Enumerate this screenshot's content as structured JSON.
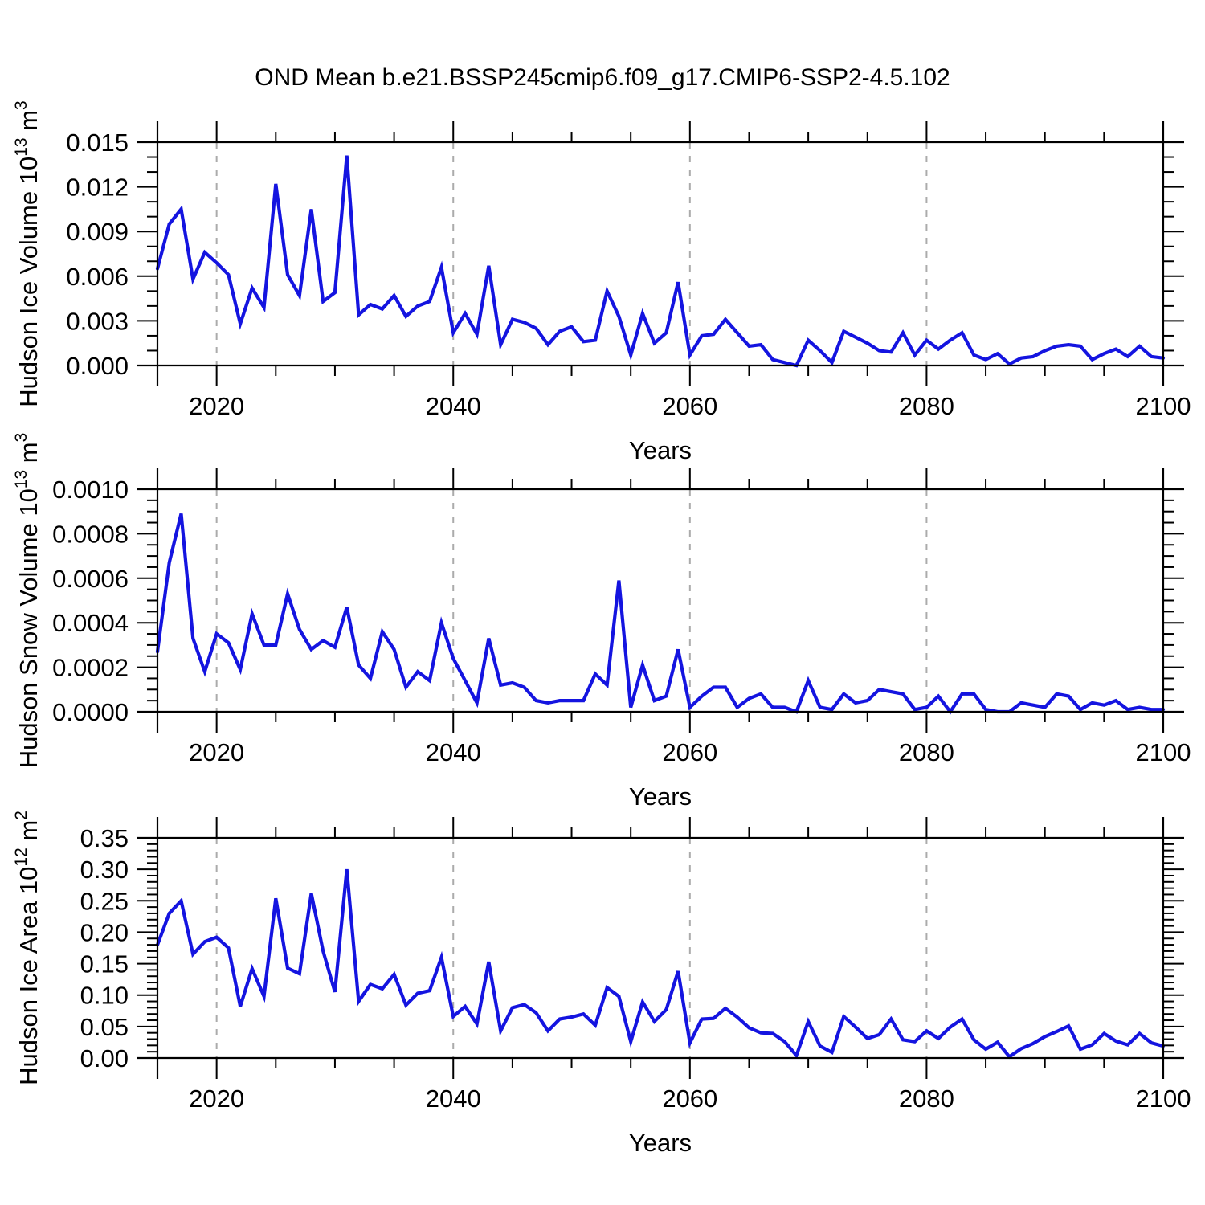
{
  "page": {
    "title": "OND Mean b.e21.BSSP245cmip6.f09_g17.CMIP6-SSP2-4.5.102",
    "background_color": "#ffffff",
    "line_color": "#1414e0",
    "grid_color": "#ababab",
    "axis_color": "#000000"
  },
  "x_axis": {
    "label": "Years",
    "start": 2015,
    "end": 2100,
    "major_tick_years": [
      2020,
      2040,
      2060,
      2080,
      2100
    ],
    "minor_tick_step": 5,
    "grid_years": [
      2020,
      2040,
      2060,
      2080
    ],
    "grid_style": "dashed"
  },
  "chart_data": [
    {
      "id": "hudson-ice-volume",
      "type": "line",
      "ylabel_parts": [
        [
          "Hudson Ice Volume 10",
          0
        ],
        [
          "13",
          1
        ],
        [
          " m",
          0
        ],
        [
          "3",
          1
        ]
      ],
      "ylim": [
        0,
        0.015
      ],
      "y_major_step": 0.003,
      "y_minor_divisions": 3,
      "y_decimals": 3,
      "y_tick_labels": [
        "0.000",
        "0.003",
        "0.006",
        "0.009",
        "0.012",
        "0.015"
      ],
      "x": [
        2015,
        2016,
        2017,
        2018,
        2019,
        2020,
        2021,
        2022,
        2023,
        2024,
        2025,
        2026,
        2027,
        2028,
        2029,
        2030,
        2031,
        2032,
        2033,
        2034,
        2035,
        2036,
        2037,
        2038,
        2039,
        2040,
        2041,
        2042,
        2043,
        2044,
        2045,
        2046,
        2047,
        2048,
        2049,
        2050,
        2051,
        2052,
        2053,
        2054,
        2055,
        2056,
        2057,
        2058,
        2059,
        2060,
        2061,
        2062,
        2063,
        2064,
        2065,
        2066,
        2067,
        2068,
        2069,
        2070,
        2071,
        2072,
        2073,
        2074,
        2075,
        2076,
        2077,
        2078,
        2079,
        2080,
        2081,
        2082,
        2083,
        2084,
        2085,
        2086,
        2087,
        2088,
        2089,
        2090,
        2091,
        2092,
        2093,
        2094,
        2095,
        2096,
        2097,
        2098,
        2099,
        2100
      ],
      "values": [
        0.0065,
        0.0095,
        0.0105,
        0.0058,
        0.0076,
        0.0069,
        0.0061,
        0.0028,
        0.0052,
        0.0039,
        0.0122,
        0.0061,
        0.0047,
        0.0105,
        0.0043,
        0.0049,
        0.0141,
        0.0034,
        0.0041,
        0.0038,
        0.0047,
        0.0033,
        0.004,
        0.0043,
        0.0066,
        0.0022,
        0.0035,
        0.0021,
        0.0067,
        0.0014,
        0.0031,
        0.0029,
        0.0025,
        0.0014,
        0.0023,
        0.0026,
        0.0016,
        0.0017,
        0.005,
        0.0033,
        0.0007,
        0.0035,
        0.0015,
        0.0022,
        0.0056,
        0.0007,
        0.002,
        0.0021,
        0.0031,
        0.0022,
        0.0013,
        0.0014,
        0.0004,
        0.0002,
        0.0,
        0.0017,
        0.001,
        0.0002,
        0.0023,
        0.0019,
        0.0015,
        0.001,
        0.0009,
        0.0022,
        0.0007,
        0.0017,
        0.0011,
        0.0017,
        0.0022,
        0.0007,
        0.0004,
        0.0008,
        0.0001,
        0.0005,
        0.0006,
        0.001,
        0.0013,
        0.0014,
        0.0013,
        0.0004,
        0.0008,
        0.0011,
        0.0006,
        0.0013,
        0.0006,
        0.0005
      ]
    },
    {
      "id": "hudson-snow-volume",
      "type": "line",
      "ylabel_parts": [
        [
          "Hudson Snow Volume 10",
          0
        ],
        [
          "13",
          1
        ],
        [
          " m",
          0
        ],
        [
          "3",
          1
        ]
      ],
      "ylim": [
        0,
        0.001
      ],
      "y_major_step": 0.0002,
      "y_minor_divisions": 4,
      "y_decimals": 4,
      "y_tick_labels": [
        "0.0000",
        "0.0002",
        "0.0004",
        "0.0006",
        "0.0008",
        "0.0010"
      ],
      "x": [
        2015,
        2016,
        2017,
        2018,
        2019,
        2020,
        2021,
        2022,
        2023,
        2024,
        2025,
        2026,
        2027,
        2028,
        2029,
        2030,
        2031,
        2032,
        2033,
        2034,
        2035,
        2036,
        2037,
        2038,
        2039,
        2040,
        2041,
        2042,
        2043,
        2044,
        2045,
        2046,
        2047,
        2048,
        2049,
        2050,
        2051,
        2052,
        2053,
        2054,
        2055,
        2056,
        2057,
        2058,
        2059,
        2060,
        2061,
        2062,
        2063,
        2064,
        2065,
        2066,
        2067,
        2068,
        2069,
        2070,
        2071,
        2072,
        2073,
        2074,
        2075,
        2076,
        2077,
        2078,
        2079,
        2080,
        2081,
        2082,
        2083,
        2084,
        2085,
        2086,
        2087,
        2088,
        2089,
        2090,
        2091,
        2092,
        2093,
        2094,
        2095,
        2096,
        2097,
        2098,
        2099,
        2100
      ],
      "values": [
        0.00027,
        0.00067,
        0.00089,
        0.00033,
        0.00018,
        0.00035,
        0.00031,
        0.00019,
        0.00044,
        0.0003,
        0.0003,
        0.00053,
        0.00037,
        0.00028,
        0.00032,
        0.00029,
        0.00047,
        0.00021,
        0.00015,
        0.00036,
        0.00028,
        0.00011,
        0.00018,
        0.00014,
        0.0004,
        0.00024,
        0.00014,
        4e-05,
        0.00033,
        0.00012,
        0.00013,
        0.00011,
        5e-05,
        4e-05,
        5e-05,
        5e-05,
        5e-05,
        0.00017,
        0.00012,
        0.00059,
        2e-05,
        0.00021,
        5e-05,
        7e-05,
        0.00028,
        2e-05,
        7e-05,
        0.00011,
        0.00011,
        2e-05,
        6e-05,
        8e-05,
        2e-05,
        2e-05,
        0.0,
        0.00014,
        2e-05,
        1e-05,
        8e-05,
        4e-05,
        5e-05,
        0.0001,
        9e-05,
        8e-05,
        1e-05,
        2e-05,
        7e-05,
        0.0,
        8e-05,
        8e-05,
        1e-05,
        0.0,
        0.0,
        4e-05,
        3e-05,
        2e-05,
        8e-05,
        7e-05,
        1e-05,
        4e-05,
        3e-05,
        5e-05,
        1e-05,
        2e-05,
        1e-05,
        1e-05
      ]
    },
    {
      "id": "hudson-ice-area",
      "type": "line",
      "ylabel_parts": [
        [
          "Hudson Ice Area 10",
          0
        ],
        [
          "12",
          1
        ],
        [
          " m",
          0
        ],
        [
          "2",
          1
        ]
      ],
      "ylim": [
        0,
        0.35
      ],
      "y_major_step": 0.05,
      "y_minor_divisions": 5,
      "y_decimals": 2,
      "y_tick_labels": [
        "0.00",
        "0.05",
        "0.10",
        "0.15",
        "0.20",
        "0.25",
        "0.30",
        "0.35"
      ],
      "x": [
        2015,
        2016,
        2017,
        2018,
        2019,
        2020,
        2021,
        2022,
        2023,
        2024,
        2025,
        2026,
        2027,
        2028,
        2029,
        2030,
        2031,
        2032,
        2033,
        2034,
        2035,
        2036,
        2037,
        2038,
        2039,
        2040,
        2041,
        2042,
        2043,
        2044,
        2045,
        2046,
        2047,
        2048,
        2049,
        2050,
        2051,
        2052,
        2053,
        2054,
        2055,
        2056,
        2057,
        2058,
        2059,
        2060,
        2061,
        2062,
        2063,
        2064,
        2065,
        2066,
        2067,
        2068,
        2069,
        2070,
        2071,
        2072,
        2073,
        2074,
        2075,
        2076,
        2077,
        2078,
        2079,
        2080,
        2081,
        2082,
        2083,
        2084,
        2085,
        2086,
        2087,
        2088,
        2089,
        2090,
        2091,
        2092,
        2093,
        2094,
        2095,
        2096,
        2097,
        2098,
        2099,
        2100
      ],
      "values": [
        0.18,
        0.23,
        0.25,
        0.165,
        0.185,
        0.192,
        0.175,
        0.082,
        0.142,
        0.098,
        0.254,
        0.143,
        0.134,
        0.262,
        0.17,
        0.105,
        0.3,
        0.09,
        0.117,
        0.11,
        0.133,
        0.084,
        0.103,
        0.107,
        0.16,
        0.066,
        0.082,
        0.054,
        0.153,
        0.043,
        0.08,
        0.085,
        0.072,
        0.043,
        0.062,
        0.065,
        0.07,
        0.052,
        0.112,
        0.098,
        0.026,
        0.089,
        0.058,
        0.077,
        0.138,
        0.024,
        0.062,
        0.063,
        0.079,
        0.065,
        0.048,
        0.04,
        0.039,
        0.026,
        0.004,
        0.058,
        0.019,
        0.009,
        0.066,
        0.049,
        0.031,
        0.037,
        0.062,
        0.029,
        0.026,
        0.043,
        0.031,
        0.049,
        0.062,
        0.029,
        0.014,
        0.025,
        0.002,
        0.015,
        0.023,
        0.034,
        0.042,
        0.051,
        0.014,
        0.021,
        0.039,
        0.027,
        0.021,
        0.039,
        0.024,
        0.019
      ]
    }
  ]
}
